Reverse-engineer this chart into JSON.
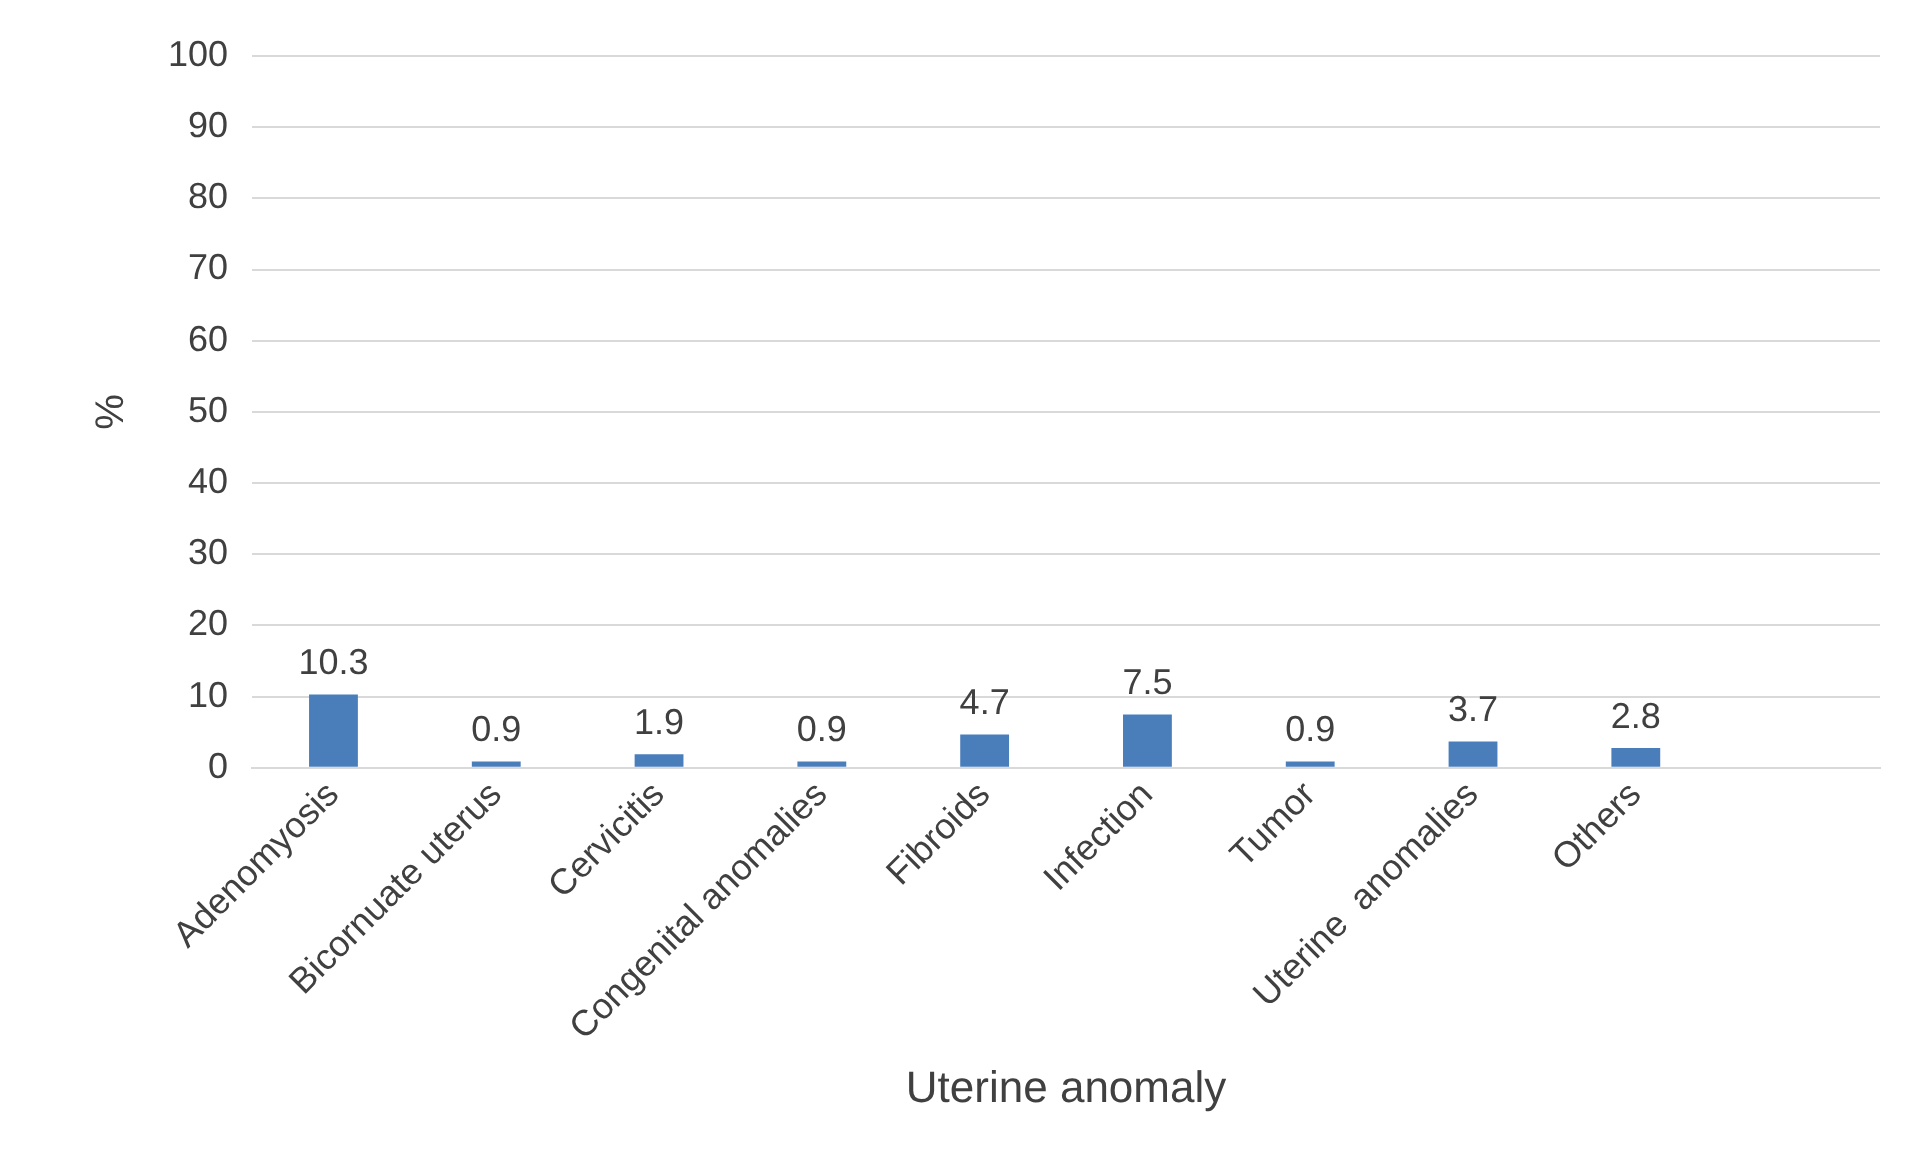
{
  "chart_data": {
    "type": "bar",
    "xlabel": "Uterine anomaly",
    "ylabel": "%",
    "categories": [
      "Adenomyosis",
      "Bicornuate uterus",
      "Cervicitis",
      "Congenital anomalies",
      "Fibroids",
      "Infection",
      "Tumor",
      "Uterine  anomalies",
      "Others",
      null
    ],
    "values": [
      10.3,
      0.9,
      1.9,
      0.9,
      4.7,
      7.5,
      0.9,
      3.7,
      2.8,
      null
    ],
    "color": "#4a7ebb",
    "ylim": [
      0,
      100
    ],
    "yticks": [
      0,
      10,
      20,
      30,
      40,
      50,
      60,
      70,
      80,
      90,
      100
    ],
    "grid": "y",
    "data_labels": true,
    "legend": false
  }
}
